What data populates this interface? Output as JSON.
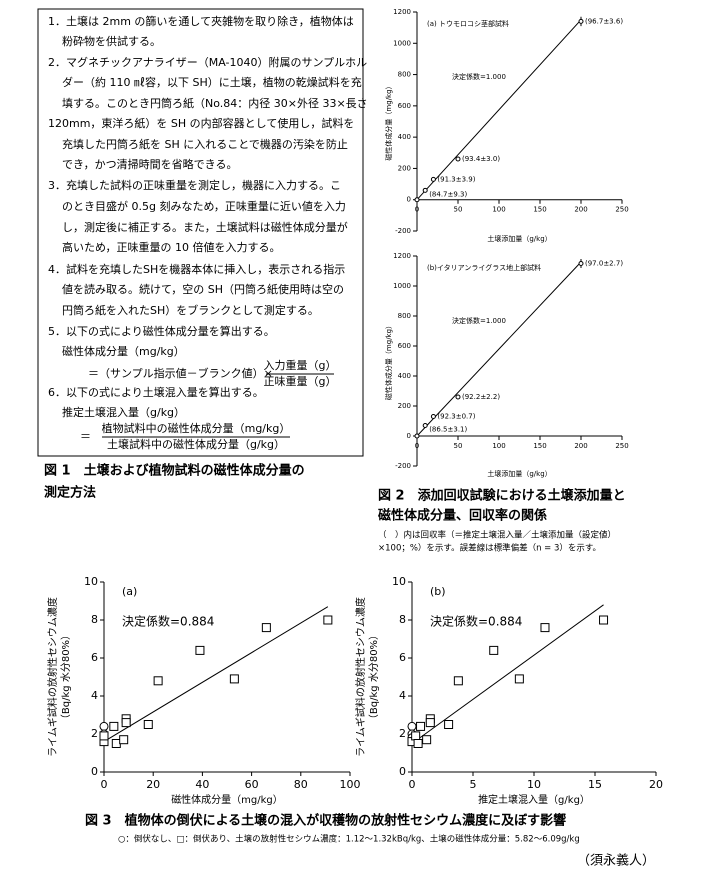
{
  "procedure": {
    "lines": [
      "1．土壌は 2mm の篩いを通して夾雑物を取り除き，植物体は",
      "粉砕物を供試する。",
      "2．マグネチックアナライザー（MA-1040）附属のサンプルホル",
      "ダー（約 110 ㎖容，以下 SH）に土壌，植物の乾燥試料を充",
      "填する。このとき円筒ろ紙（No.84：内径 30×外径 33×長さ",
      "120mm，東洋ろ紙）を SH の内部容器として使用し，試料を",
      "充填した円筒ろ紙を SH に入れることで機器の汚染を防止",
      "でき，かつ清掃時間を省略できる。",
      "3．充填した試料の正味重量を測定し，機器に入力する。こ",
      "のとき目盛が 0.5g 刻みなため，正味重量に近い値を入力",
      "し，測定後に補正する。また，土壌試料は磁性体成分量が",
      "高いため，正味重量の 10 倍値を入力する。",
      "4．試料を充填したSHを機器本体に挿入し，表示される指示",
      "値を読み取る。続けて，空の SH（円筒ろ紙使用時は空の",
      "円筒ろ紙を入れたSH）をブランクとして測定する。",
      "5．以下の式により磁性体成分量を算出する。",
      "磁性体成分量（mg/kg）"
    ],
    "formula1": {
      "lhs": "＝（サンプル指示値－ブランク値）×",
      "num": "入力重量（g）",
      "den": "正味重量（g）"
    },
    "lines2": [
      "6．以下の式により土壌混入量を算出する。",
      "推定土壌混入量（g/kg）"
    ],
    "formula2": {
      "lhs": "＝",
      "num": "植物試料中の磁性体成分量（mg/kg）",
      "den": "土壌試料中の磁性体成分量（g/kg）"
    }
  },
  "fig1_caption": [
    "図 1　土壌および植物試料の磁性体成分量の",
    "測定方法"
  ],
  "fig2_caption": [
    "図 2　添加回収試験における土壌添加量と",
    "磁性体成分量、回収率の関係"
  ],
  "fig2_note": [
    "（　）内は回収率（＝推定土壌混入量／土壌添加量（設定値）",
    "×100；%）を示す。誤差線は標準偏差（n = 3）を示す。"
  ],
  "fig3_caption": "図 3　植物体の倒伏による土壌の混入が収穫物の放射性セシウム濃度に及ぼす影響",
  "fig3_note": "○：倒伏なし、□：倒伏あり、土壌の放射性セシウム濃度：1.12～1.32kBq/kg、土壌の磁性体成分量：5.82～6.09g/kg",
  "author": "（須永義人）",
  "chart_data": [
    {
      "type": "scatter",
      "panel_label": "(a) トウモロコシ茎部試料",
      "r2_label": "決定係数=1.000",
      "xlabel": "土壌添加量（g/kg）",
      "ylabel": [
        "磁性体成分量（mg/kg）"
      ],
      "xlim": [
        0,
        250
      ],
      "xticks": [
        0,
        50,
        100,
        150,
        200,
        250
      ],
      "ylim": [
        -200,
        1200
      ],
      "yticks": [
        -200,
        0,
        200,
        400,
        600,
        800,
        1000,
        1200
      ],
      "series": [
        {
          "marker": "circle",
          "color": "#000000",
          "x": [
            0,
            10,
            20,
            50,
            200
          ],
          "values": [
            0,
            60,
            130,
            260,
            1140
          ],
          "errors": [
            0,
            0,
            0,
            0,
            30
          ],
          "point_labels": [
            null,
            "(84.7±9.3)",
            "(91.3±3.9)",
            "(93.4±3.0)",
            "(96.7±3.6)"
          ]
        }
      ],
      "fit": {
        "x": [
          0,
          200
        ],
        "y": [
          0,
          1150
        ]
      }
    },
    {
      "type": "scatter",
      "panel_label": "(b)イタリアンライグラス地上部試料",
      "r2_label": "決定係数=1.000",
      "xlabel": "土壌添加量（g/kg）",
      "ylabel": [
        "磁性体成分量（mg/kg）"
      ],
      "xlim": [
        0,
        250
      ],
      "xticks": [
        0,
        50,
        100,
        150,
        200,
        250
      ],
      "ylim": [
        -200,
        1200
      ],
      "yticks": [
        -200,
        0,
        200,
        400,
        600,
        800,
        1000,
        1200
      ],
      "series": [
        {
          "marker": "circle",
          "color": "#000000",
          "x": [
            0,
            10,
            20,
            50,
            200
          ],
          "values": [
            0,
            70,
            130,
            260,
            1150
          ],
          "errors": [
            0,
            0,
            0,
            0,
            30
          ],
          "point_labels": [
            null,
            "(86.5±3.1)",
            "(92.3±0.7)",
            "(92.2±2.2)",
            "(97.0±2.7)"
          ]
        }
      ],
      "fit": {
        "x": [
          0,
          200
        ],
        "y": [
          0,
          1160
        ]
      }
    },
    {
      "type": "scatter",
      "panel_label": "(a)",
      "r2_label": "決定係数=0.884",
      "xlabel": "磁性体成分量（mg/kg）",
      "ylabel": [
        "ライムギ試料の放射性セシウム濃度",
        "（Bq/kg 水分80%）"
      ],
      "xlim": [
        0,
        100
      ],
      "xticks": [
        0,
        20,
        40,
        60,
        80,
        100
      ],
      "ylim": [
        0,
        10
      ],
      "yticks": [
        0,
        2,
        4,
        6,
        8,
        10
      ],
      "series": [
        {
          "marker": "circle",
          "color": "#000000",
          "x": [
            0,
            0,
            0,
            0
          ],
          "values": [
            2.4,
            2.0,
            1.8,
            1.6
          ]
        },
        {
          "marker": "square",
          "color": "#000000",
          "x": [
            0,
            0,
            4,
            5,
            8,
            9,
            9,
            18,
            22,
            39,
            53,
            66,
            91
          ],
          "values": [
            1.6,
            1.9,
            2.4,
            1.5,
            1.7,
            2.8,
            2.6,
            2.5,
            4.8,
            6.4,
            4.9,
            7.6,
            8.0
          ]
        }
      ],
      "fit": {
        "x": [
          0,
          91
        ],
        "y": [
          1.6,
          8.7
        ]
      }
    },
    {
      "type": "scatter",
      "panel_label": "(b)",
      "r2_label": "決定係数=0.884",
      "xlabel": "推定土壌混入量（g/kg）",
      "ylabel": [
        "ライムギ試料の放射性セシウム濃度",
        "（Bq/kg 水分80%）"
      ],
      "xlim": [
        0,
        20
      ],
      "xticks": [
        0,
        5,
        10,
        15,
        20
      ],
      "ylim": [
        0,
        10
      ],
      "yticks": [
        0,
        2,
        4,
        6,
        8,
        10
      ],
      "series": [
        {
          "marker": "circle",
          "color": "#000000",
          "x": [
            0,
            0,
            0,
            0
          ],
          "values": [
            2.4,
            2.0,
            1.8,
            1.6
          ]
        },
        {
          "marker": "square",
          "color": "#000000",
          "x": [
            0,
            0.3,
            0.7,
            0.5,
            1.2,
            1.5,
            1.5,
            3,
            3.8,
            6.7,
            8.8,
            10.9,
            15.7
          ],
          "values": [
            1.6,
            1.9,
            2.4,
            1.5,
            1.7,
            2.8,
            2.6,
            2.5,
            4.8,
            6.4,
            4.9,
            7.6,
            8.0
          ]
        }
      ],
      "fit": {
        "x": [
          0,
          15.7
        ],
        "y": [
          1.5,
          8.8
        ]
      }
    }
  ]
}
